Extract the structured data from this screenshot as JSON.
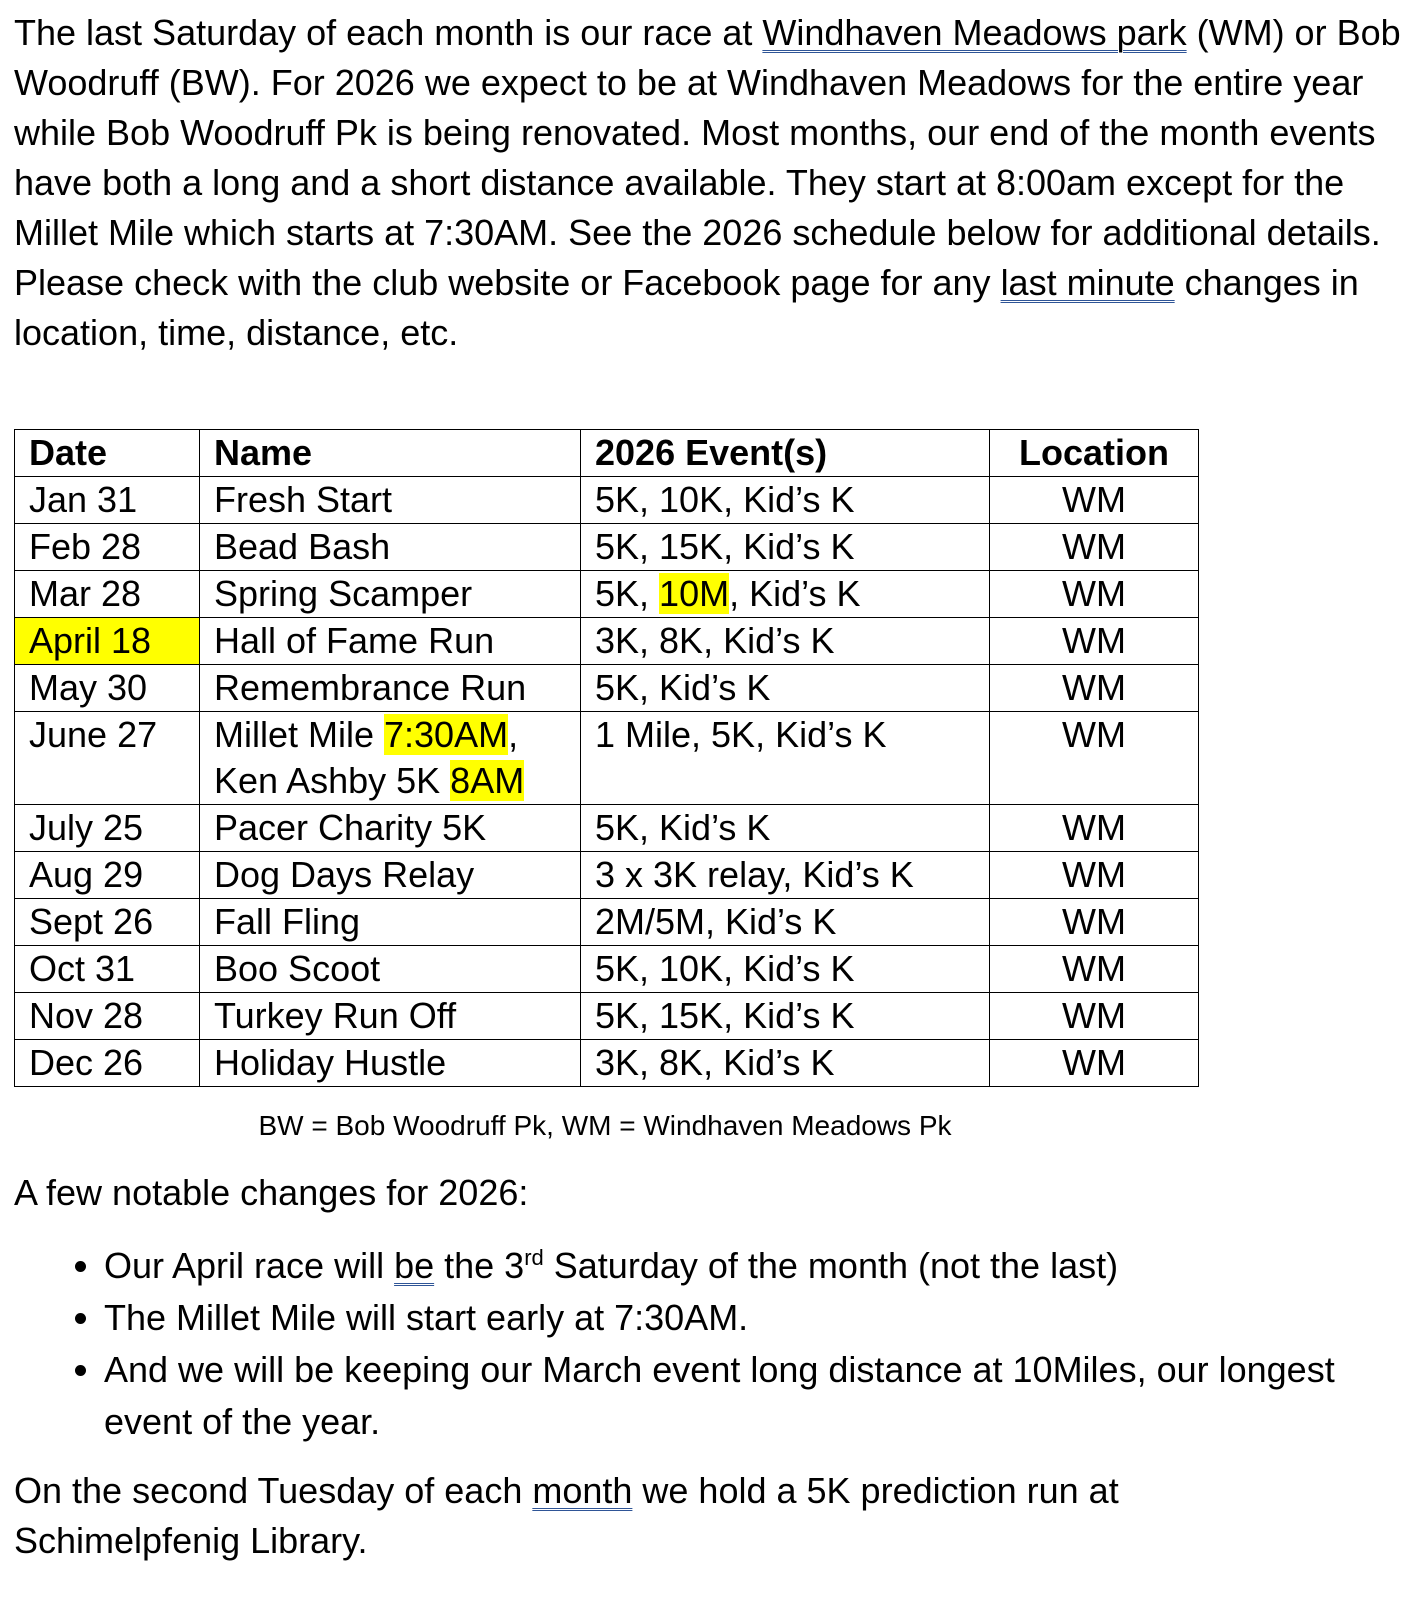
{
  "intro": {
    "before_link": "The last Saturday of each month is our race at ",
    "link1": "Windhaven Meadows park",
    "middle": " (WM) or Bob Woodruff (BW). For 2026 we expect to be at Windhaven Meadows for the entire year while Bob Woodruff Pk is being renovated. Most months, our end of the month events have both a long and a short distance available. They start at 8:00am except for the Millet Mile which starts at 7:30AM. See the 2026 schedule below for additional details. Please check with the club website or Facebook page for any ",
    "link2": "last minute",
    "after": " changes in location, time, distance, etc."
  },
  "table": {
    "headers": [
      "Date",
      "Name",
      "2026 Event(s)",
      "Location"
    ],
    "rows": [
      [
        [
          {
            "t": "Jan 31"
          }
        ],
        [
          {
            "t": "Fresh Start"
          }
        ],
        [
          {
            "t": "5K, 10K, Kid’s K"
          }
        ],
        [
          {
            "t": "WM"
          }
        ]
      ],
      [
        [
          {
            "t": "Feb 28"
          }
        ],
        [
          {
            "t": "Bead Bash"
          }
        ],
        [
          {
            "t": "5K, 15K, Kid’s K"
          }
        ],
        [
          {
            "t": "WM"
          }
        ]
      ],
      [
        [
          {
            "t": "Mar 28"
          }
        ],
        [
          {
            "t": "Spring Scamper"
          }
        ],
        [
          {
            "t": "5K, "
          },
          {
            "t": "10M",
            "hl": true
          },
          {
            "t": ", Kid’s K"
          }
        ],
        [
          {
            "t": "WM"
          }
        ]
      ],
      [
        [
          {
            "t": "April 18",
            "cell_hl": true
          }
        ],
        [
          {
            "t": "Hall of Fame Run"
          }
        ],
        [
          {
            "t": "3K, 8K, Kid’s K"
          }
        ],
        [
          {
            "t": "WM"
          }
        ]
      ],
      [
        [
          {
            "t": "May 30"
          }
        ],
        [
          {
            "t": "Remembrance Run"
          }
        ],
        [
          {
            "t": "5K, Kid’s K"
          }
        ],
        [
          {
            "t": "WM"
          }
        ]
      ],
      [
        [
          {
            "t": "June 27"
          }
        ],
        [
          {
            "t": "Millet Mile "
          },
          {
            "t": "7:30AM",
            "hl": true
          },
          {
            "t": ","
          },
          {
            "br": true
          },
          {
            "t": "Ken Ashby 5K "
          },
          {
            "t": "8AM",
            "hl": true
          }
        ],
        [
          {
            "t": "1 Mile, 5K, Kid’s K"
          }
        ],
        [
          {
            "t": "WM"
          }
        ]
      ],
      [
        [
          {
            "t": "July 25"
          }
        ],
        [
          {
            "t": "Pacer Charity 5K"
          }
        ],
        [
          {
            "t": "5K, Kid’s K"
          }
        ],
        [
          {
            "t": "WM"
          }
        ]
      ],
      [
        [
          {
            "t": "Aug 29"
          }
        ],
        [
          {
            "t": "Dog Days Relay"
          }
        ],
        [
          {
            "t": "3 x 3K relay, Kid’s K"
          }
        ],
        [
          {
            "t": "WM"
          }
        ]
      ],
      [
        [
          {
            "t": "Sept 26"
          }
        ],
        [
          {
            "t": "Fall Fling"
          }
        ],
        [
          {
            "t": "2M/5M, Kid’s K"
          }
        ],
        [
          {
            "t": "WM"
          }
        ]
      ],
      [
        [
          {
            "t": "Oct 31"
          }
        ],
        [
          {
            "t": "Boo Scoot"
          }
        ],
        [
          {
            "t": "5K, 10K, Kid’s K"
          }
        ],
        [
          {
            "t": "WM"
          }
        ]
      ],
      [
        [
          {
            "t": "Nov 28"
          }
        ],
        [
          {
            "t": "Turkey Run Off"
          }
        ],
        [
          {
            "t": "5K, 15K, Kid’s K"
          }
        ],
        [
          {
            "t": "WM"
          }
        ]
      ],
      [
        [
          {
            "t": "Dec 26"
          }
        ],
        [
          {
            "t": "Holiday Hustle"
          }
        ],
        [
          {
            "t": "3K, 8K, Kid’s K"
          }
        ],
        [
          {
            "t": "WM"
          }
        ]
      ]
    ],
    "caption": "BW = Bob Woodruff Pk, WM = Windhaven Meadows Pk"
  },
  "highlight_color": "#ffff00",
  "changes": {
    "heading": "A few notable changes for 2026:",
    "item1": {
      "a": "Our April race will ",
      "u": "be",
      "b": " the 3",
      "sup": "rd",
      "c": " Saturday of the month (not the last)"
    },
    "item2": "The Millet Mile will start early at 7:30AM.",
    "item3": "And we will be keeping our March event long distance at 10Miles, our longest event of the year."
  },
  "closing": {
    "a": "On the second Tuesday of each ",
    "u": "month",
    "b": " we hold a 5K prediction run at Schimelpfenig Library."
  }
}
